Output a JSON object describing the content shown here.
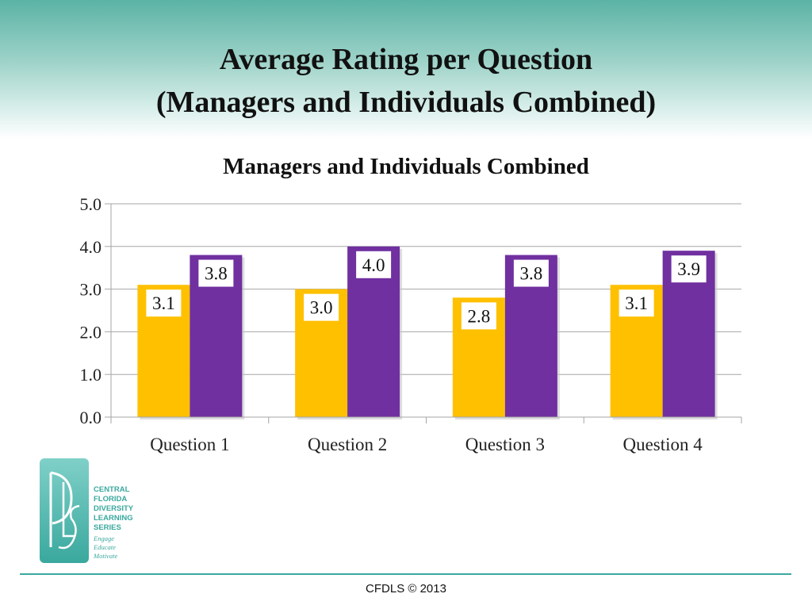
{
  "slide": {
    "title_line1": "Average Rating per Question",
    "title_line2": "(Managers and Individuals Combined)",
    "footer": "CFDLS © 2013"
  },
  "logo": {
    "lines": [
      "CENTRAL",
      "FLORIDA",
      "DIVERSITY",
      "LEARNING",
      "SERIES"
    ],
    "tagline": [
      "Engage",
      "Educate",
      "Motivate"
    ]
  },
  "colors": {
    "series1": "#ffc000",
    "series2": "#7030a0",
    "grid": "#a6a6a6",
    "accent": "#3aa89e"
  },
  "chart_data": {
    "type": "bar",
    "title": "Managers and Individuals Combined",
    "categories": [
      "Question 1",
      "Question 2",
      "Question 3",
      "Question 4"
    ],
    "series": [
      {
        "values": [
          3.1,
          3.0,
          2.8,
          3.1
        ],
        "labels": [
          "3.1",
          "3.0",
          "2.8",
          "3.1"
        ],
        "color": "#ffc000"
      },
      {
        "values": [
          3.8,
          4.0,
          3.8,
          3.9
        ],
        "labels": [
          "3.8",
          "4.0",
          "3.8",
          "3.9"
        ],
        "color": "#7030a0"
      }
    ],
    "ylim": [
      0,
      5
    ],
    "yticks": [
      "0.0",
      "1.0",
      "2.0",
      "3.0",
      "4.0",
      "5.0"
    ],
    "grid": true,
    "legend": "none"
  }
}
